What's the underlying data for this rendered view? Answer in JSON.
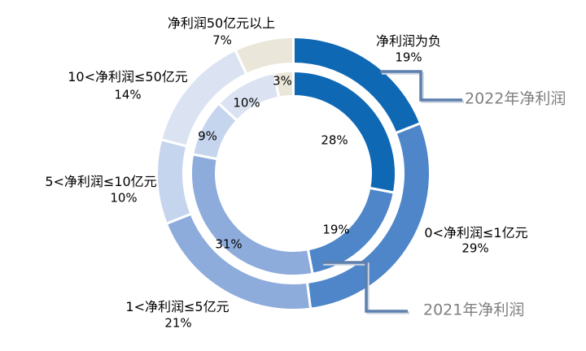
{
  "colors": {
    "background": "#FFFFFF",
    "callout_line": "#5D80AE",
    "callout_line_shadow": "#CBD4E0",
    "callout_text": "#7F7F7F",
    "label_text": "#000000",
    "segment_border": "#FFFFFF"
  },
  "chart_data": {
    "type": "pie",
    "variant": "double-ring doughnut",
    "title": "",
    "direction": "clockwise",
    "start_angle_deg": 0,
    "legend_position": "callout",
    "categories": [
      "净利润为负",
      "0<净利润≤1亿元",
      "1<净利润≤5亿元",
      "5<净利润≤10亿元",
      "10<净利润≤50亿元",
      "净利润50亿元以上"
    ],
    "category_colors": [
      "#0E68B4",
      "#4E86C9",
      "#8DABDB",
      "#C6D5EE",
      "#DBE3F2",
      "#EAE7DA"
    ],
    "series": [
      {
        "name": "2022年净利润",
        "ring": "outer",
        "unit": "%",
        "values": [
          19,
          29,
          21,
          10,
          14,
          7
        ]
      },
      {
        "name": "2021年净利润",
        "ring": "inner",
        "unit": "%",
        "values": [
          28,
          19,
          31,
          9,
          10,
          3
        ]
      }
    ],
    "labels": {
      "outer": [
        {
          "name": "净利润为负",
          "pct": "19%"
        },
        {
          "name": "0<净利润≤1亿元",
          "pct": "29%"
        },
        {
          "name": "1<净利润≤5亿元",
          "pct": "21%"
        },
        {
          "name": "5<净利润≤10亿元",
          "pct": "10%"
        },
        {
          "name": "10<净利润≤50亿元",
          "pct": "14%"
        },
        {
          "name": "净利润50亿元以上",
          "pct": "7%"
        }
      ],
      "inner_pcts": [
        "28%",
        "19%",
        "31%",
        "9%",
        "10%",
        "3%"
      ]
    }
  }
}
